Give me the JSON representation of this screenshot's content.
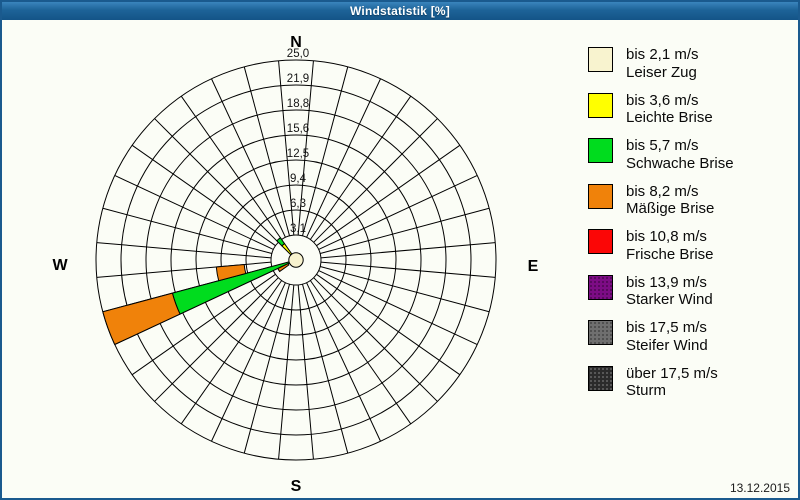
{
  "window": {
    "title": "Windstatistik [%]",
    "date": "13.12.2015"
  },
  "colors": {
    "cream": "#f8f3cf",
    "yellow": "#ffff00",
    "green": "#00dc1e",
    "orange": "#f0820a",
    "red": "#fb0606",
    "purple": "#7d0c85",
    "gray": "#6f6f6f",
    "black": "#2b2b2b",
    "grid": "#000000",
    "accent_blue": "#1d6398"
  },
  "legend": {
    "items": [
      {
        "speed": "bis 2,1 m/s",
        "name": "Leiser Zug",
        "color_key": "cream",
        "texture": "solid"
      },
      {
        "speed": "bis 3,6 m/s",
        "name": "Leichte Brise",
        "color_key": "yellow",
        "texture": "solid"
      },
      {
        "speed": "bis 5,7 m/s",
        "name": "Schwache Brise",
        "color_key": "green",
        "texture": "solid"
      },
      {
        "speed": "bis 8,2 m/s",
        "name": "Mäßige Brise",
        "color_key": "orange",
        "texture": "solid"
      },
      {
        "speed": "bis 10,8 m/s",
        "name": "Frische Brise",
        "color_key": "red",
        "texture": "solid"
      },
      {
        "speed": "bis 13,9 m/s",
        "name": "Starker Wind",
        "color_key": "purple",
        "texture": "dots-dark"
      },
      {
        "speed": "bis 17,5 m/s",
        "name": "Steifer Wind",
        "color_key": "gray",
        "texture": "dots-dark"
      },
      {
        "speed": "über 17,5 m/s",
        "name": "Sturm",
        "color_key": "black",
        "texture": "dots-light"
      }
    ]
  },
  "chart_data": {
    "type": "wind-rose",
    "title": "Windstatistik [%]",
    "units": "percent",
    "max_pct": 25.0,
    "ring_step_pct": 3.125,
    "rings": [
      {
        "value": 3.125,
        "label": "3,1"
      },
      {
        "value": 6.25,
        "label": "6,3"
      },
      {
        "value": 9.375,
        "label": "9,4"
      },
      {
        "value": 12.5,
        "label": "12,5"
      },
      {
        "value": 15.625,
        "label": "15,6"
      },
      {
        "value": 18.75,
        "label": "18,8"
      },
      {
        "value": 21.875,
        "label": "21,9"
      },
      {
        "value": 25.0,
        "label": "25,0"
      }
    ],
    "sector_width_deg": 10,
    "compass_labels": {
      "north": "N",
      "east": "E",
      "south": "S",
      "west": "W"
    },
    "calm_center": {
      "color_key": "cream",
      "radius_pct": 0.9
    },
    "sectors": [
      {
        "direction_deg": 250,
        "bands": [
          {
            "speed_class": "bis 5,7 m/s",
            "color_key": "green",
            "from_pct": 0.9,
            "to_pct": 16.0
          },
          {
            "speed_class": "bis 8,2 m/s",
            "color_key": "orange",
            "from_pct": 16.0,
            "to_pct": 25.0
          }
        ]
      },
      {
        "direction_deg": 260,
        "bands": [
          {
            "speed_class": "bis 8,2 m/s",
            "color_key": "orange",
            "from_pct": 6.5,
            "to_pct": 10.0
          }
        ]
      },
      {
        "direction_deg": 240,
        "bands": [
          {
            "speed_class": "bis 8,2 m/s",
            "color_key": "orange",
            "from_pct": 1.1,
            "to_pct": 2.5
          }
        ]
      },
      {
        "direction_deg": 320,
        "bands": [
          {
            "speed_class": "bis 3,6 m/s",
            "color_key": "yellow",
            "from_pct": 0.9,
            "to_pct": 2.5
          },
          {
            "speed_class": "bis 5,7 m/s",
            "color_key": "green",
            "from_pct": 2.5,
            "to_pct": 3.4
          }
        ]
      }
    ]
  }
}
